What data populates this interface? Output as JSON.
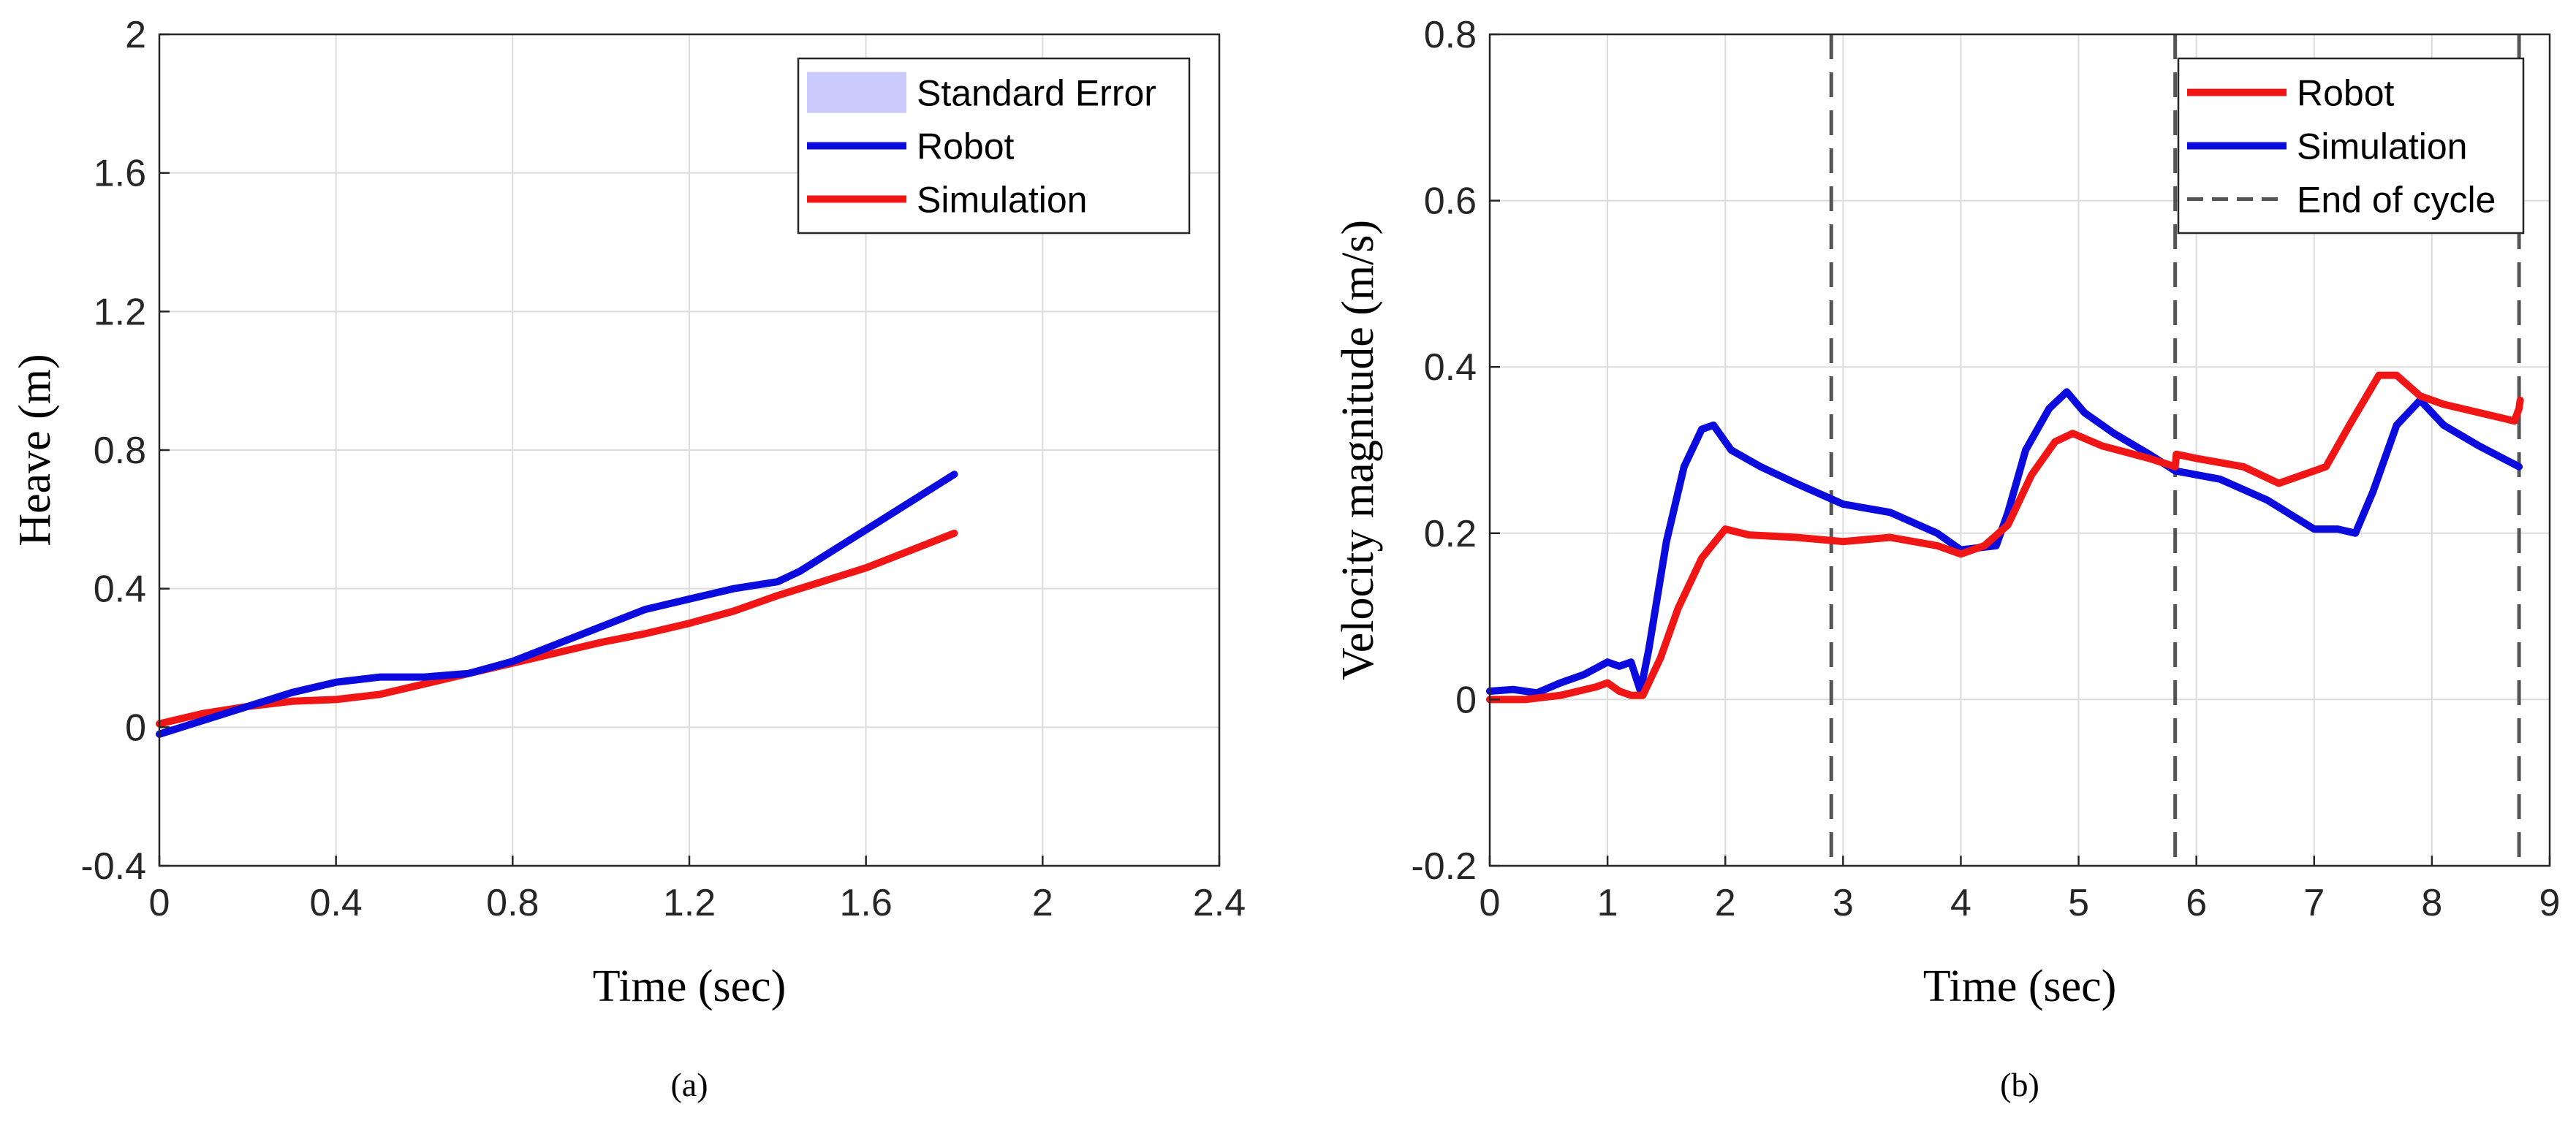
{
  "chart_data": [
    {
      "type": "line",
      "panel": "a",
      "caption": "(a)",
      "xlabel": "Time (sec)",
      "ylabel": "Heave (m)",
      "xlim": [
        0,
        2.4
      ],
      "ylim": [
        -0.4,
        2
      ],
      "xticks": [
        0,
        0.4,
        0.8,
        1.2,
        1.6,
        2,
        2.4
      ],
      "xtick_labels": [
        "0",
        "0.4",
        "0.8",
        "1.2",
        "1.6",
        "2",
        "2.4"
      ],
      "yticks": [
        -0.4,
        0,
        0.4,
        0.8,
        1.2,
        1.6,
        2
      ],
      "ytick_labels": [
        "-0.4",
        "0",
        "0.4",
        "0.8",
        "1.2",
        "1.6",
        "2"
      ],
      "grid": true,
      "legend_position": "top-right",
      "legend": [
        {
          "label": "Standard Error",
          "kind": "patch",
          "color": "#c9c9fb"
        },
        {
          "label": "Robot",
          "kind": "line",
          "color": "#0b0bde"
        },
        {
          "label": "Simulation",
          "kind": "line",
          "color": "#f01616"
        }
      ],
      "series": [
        {
          "name": "Robot",
          "color": "#0b0bde",
          "x": [
            0,
            0.1,
            0.2,
            0.3,
            0.4,
            0.5,
            0.6,
            0.7,
            0.8,
            0.9,
            1.0,
            1.1,
            1.2,
            1.3,
            1.4,
            1.45,
            1.5,
            1.6,
            1.7,
            1.8
          ],
          "y": [
            -0.02,
            0.02,
            0.06,
            0.1,
            0.13,
            0.145,
            0.145,
            0.155,
            0.19,
            0.24,
            0.29,
            0.34,
            0.37,
            0.4,
            0.42,
            0.45,
            0.49,
            0.57,
            0.65,
            0.73
          ]
        },
        {
          "name": "Simulation",
          "color": "#f01616",
          "x": [
            0,
            0.1,
            0.2,
            0.3,
            0.4,
            0.5,
            0.6,
            0.7,
            0.8,
            0.9,
            1.0,
            1.1,
            1.2,
            1.3,
            1.4,
            1.5,
            1.6,
            1.7,
            1.8
          ],
          "y": [
            0.01,
            0.04,
            0.06,
            0.075,
            0.08,
            0.095,
            0.125,
            0.155,
            0.185,
            0.215,
            0.245,
            0.27,
            0.3,
            0.335,
            0.38,
            0.42,
            0.46,
            0.51,
            0.56
          ]
        }
      ]
    },
    {
      "type": "line",
      "panel": "b",
      "caption": "(b)",
      "xlabel": "Time (sec)",
      "ylabel": "Velocity magnitude (m/s)",
      "xlim": [
        0,
        9
      ],
      "ylim": [
        -0.2,
        0.8
      ],
      "xticks": [
        0,
        1,
        2,
        3,
        4,
        5,
        6,
        7,
        8,
        9
      ],
      "xtick_labels": [
        "0",
        "1",
        "2",
        "3",
        "4",
        "5",
        "6",
        "7",
        "8",
        "9"
      ],
      "yticks": [
        -0.2,
        0,
        0.2,
        0.4,
        0.6,
        0.8
      ],
      "ytick_labels": [
        "-0.2",
        "0",
        "0.2",
        "0.4",
        "0.6",
        "0.8"
      ],
      "grid": true,
      "legend_position": "top-right",
      "legend": [
        {
          "label": "Robot",
          "kind": "line",
          "color": "#f01616"
        },
        {
          "label": "Simulation",
          "kind": "line",
          "color": "#0b0bde"
        },
        {
          "label": "End of cycle",
          "kind": "dashed",
          "color": "#555555"
        }
      ],
      "cycle_ends": [
        2.9,
        5.82,
        8.74
      ],
      "series": [
        {
          "name": "Robot",
          "color": "#f01616",
          "x": [
            0,
            0.3,
            0.6,
            0.9,
            1.0,
            1.1,
            1.2,
            1.3,
            1.45,
            1.6,
            1.8,
            2.0,
            2.2,
            2.6,
            3.0,
            3.4,
            3.8,
            4.0,
            4.2,
            4.4,
            4.6,
            4.8,
            4.95,
            5.2,
            5.6,
            5.82,
            5.83,
            6.0,
            6.4,
            6.7,
            6.9,
            7.1,
            7.3,
            7.55,
            7.7,
            7.9,
            8.1,
            8.4,
            8.7,
            8.74,
            8.75
          ],
          "y": [
            0.0,
            0.0,
            0.005,
            0.015,
            0.02,
            0.01,
            0.005,
            0.005,
            0.05,
            0.11,
            0.17,
            0.205,
            0.198,
            0.195,
            0.19,
            0.195,
            0.185,
            0.175,
            0.185,
            0.21,
            0.27,
            0.31,
            0.32,
            0.305,
            0.29,
            0.28,
            0.295,
            0.29,
            0.28,
            0.26,
            0.27,
            0.28,
            0.33,
            0.39,
            0.39,
            0.365,
            0.355,
            0.345,
            0.335,
            0.35,
            0.36
          ]
        },
        {
          "name": "Simulation",
          "color": "#0b0bde",
          "x": [
            0,
            0.2,
            0.4,
            0.6,
            0.8,
            1.0,
            1.1,
            1.2,
            1.28,
            1.35,
            1.5,
            1.65,
            1.8,
            1.9,
            2.05,
            2.3,
            2.6,
            3.0,
            3.4,
            3.8,
            4.0,
            4.3,
            4.4,
            4.55,
            4.75,
            4.9,
            5.05,
            5.3,
            5.6,
            5.82,
            6.2,
            6.6,
            7.0,
            7.2,
            7.35,
            7.5,
            7.7,
            7.9,
            8.1,
            8.4,
            8.74
          ],
          "y": [
            0.01,
            0.012,
            0.008,
            0.02,
            0.03,
            0.045,
            0.04,
            0.045,
            0.01,
            0.06,
            0.19,
            0.28,
            0.325,
            0.33,
            0.3,
            0.28,
            0.26,
            0.235,
            0.225,
            0.2,
            0.18,
            0.185,
            0.225,
            0.3,
            0.35,
            0.37,
            0.345,
            0.32,
            0.295,
            0.275,
            0.265,
            0.24,
            0.205,
            0.205,
            0.2,
            0.25,
            0.33,
            0.36,
            0.33,
            0.305,
            0.28
          ]
        }
      ]
    }
  ]
}
